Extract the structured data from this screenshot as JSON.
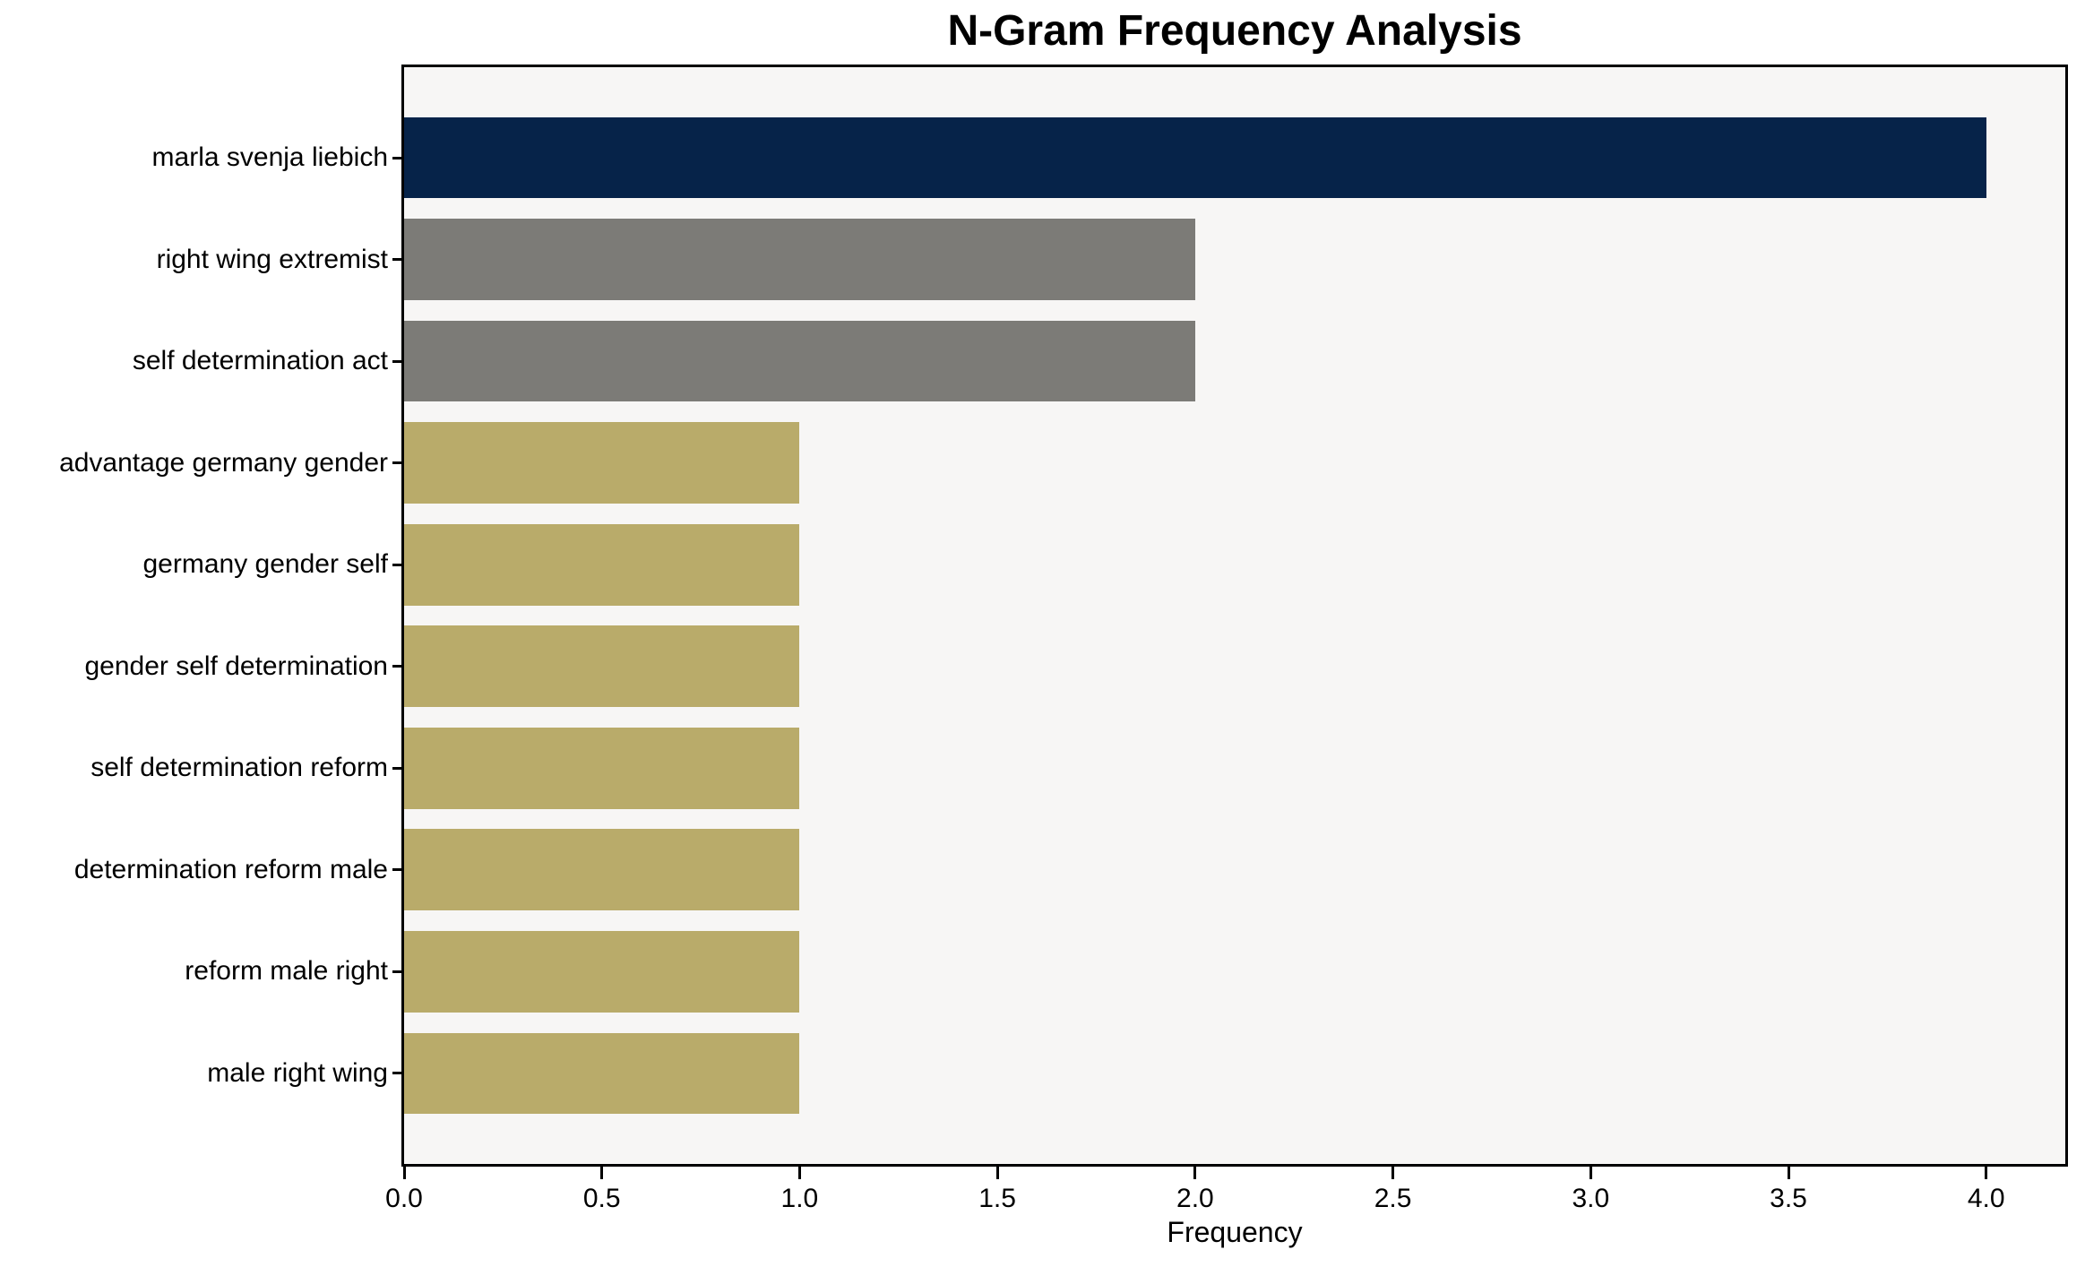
{
  "chart_data": {
    "type": "bar",
    "orientation": "horizontal",
    "title": "N-Gram Frequency Analysis",
    "xlabel": "Frequency",
    "ylabel": "",
    "categories": [
      "marla svenja liebich",
      "right wing extremist",
      "self determination act",
      "advantage germany gender",
      "germany gender self",
      "gender self determination",
      "self determination reform",
      "determination reform male",
      "reform male right",
      "male right wing"
    ],
    "values": [
      4,
      2,
      2,
      1,
      1,
      1,
      1,
      1,
      1,
      1
    ],
    "bar_colors": [
      "#062349",
      "#7c7b77",
      "#7c7b77",
      "#b9ab6a",
      "#b9ab6a",
      "#b9ab6a",
      "#b9ab6a",
      "#b9ab6a",
      "#b9ab6a",
      "#b9ab6a"
    ],
    "xlim": [
      0,
      4.2
    ],
    "xticks": [
      0,
      0.5,
      1,
      1.5,
      2,
      2.5,
      3,
      3.5,
      4
    ],
    "xtick_labels": [
      "0.0",
      "0.5",
      "1.0",
      "1.5",
      "2.0",
      "2.5",
      "3.0",
      "3.5",
      "4.0"
    ],
    "grid": false,
    "legend": null,
    "colors": {
      "figure_background": "#ffffff",
      "plot_background": "#f7f6f5",
      "axis_border": "#000000",
      "text": "#000000",
      "accent_navy": "#062349",
      "accent_gray": "#7c7b77",
      "accent_khaki": "#b9ab6a"
    }
  }
}
